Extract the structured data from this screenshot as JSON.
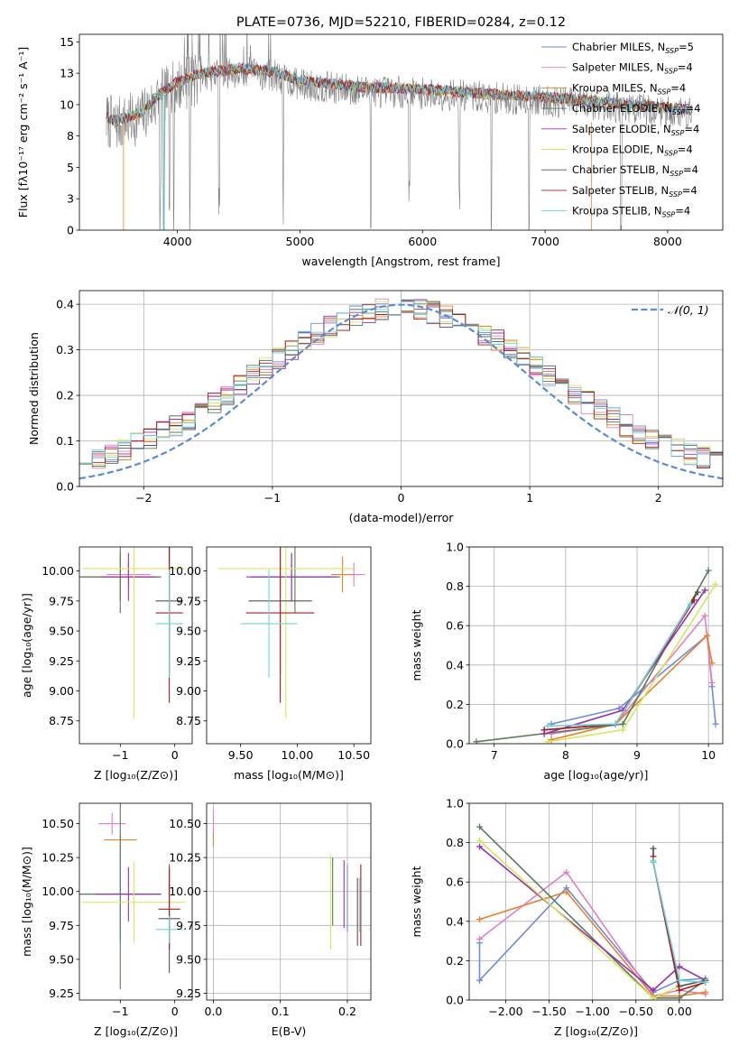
{
  "colors": {
    "Chabrier MILES": "#6c8ee0",
    "Salpeter MILES": "#e67fc0",
    "Kroupa MILES": "#e8822c",
    "Chabrier ELODIE": "#5a7a5a",
    "Salpeter ELODIE": "#9b30b0",
    "Kroupa ELODIE": "#d4e85a",
    "Chabrier STELIB": "#555555",
    "Salpeter STELIB": "#b01c1c",
    "Kroupa STELIB": "#6cd4d8",
    "normal": "#5a8ad8",
    "grid": "#b0b0b0"
  },
  "chart_data": [
    {
      "id": "spectrum",
      "type": "line",
      "title": "PLATE=0736, MJD=52210, FIBERID=0284, z=0.12",
      "xlabel": "wavelength [Angstrom, rest frame]",
      "ylabel": "Flux [fλ10⁻¹⁷ erg cm⁻² s⁻¹ A⁻¹]",
      "xlim": [
        3200,
        8450
      ],
      "ylim": [
        0,
        15.6
      ],
      "xticks": [
        4000,
        5000,
        6000,
        7000,
        8000
      ],
      "yticks": [
        0.0,
        2.5,
        5.0,
        7.5,
        10.0,
        12.5,
        15.0
      ],
      "grid": false,
      "legend_position": "top-right",
      "legend": [
        {
          "label": "Chabrier MILES, N",
          "sub": "SSP",
          "suffix": "=5"
        },
        {
          "label": "Salpeter MILES, N",
          "sub": "SSP",
          "suffix": "=4"
        },
        {
          "label": "Kroupa MILES, N",
          "sub": "SSP",
          "suffix": "=4"
        },
        {
          "label": "Chabrier ELODIE, N",
          "sub": "SSP",
          "suffix": "=4"
        },
        {
          "label": "Salpeter ELODIE, N",
          "sub": "SSP",
          "suffix": "=4"
        },
        {
          "label": "Kroupa ELODIE, N",
          "sub": "SSP",
          "suffix": "=4"
        },
        {
          "label": "Chabrier STELIB, N",
          "sub": "SSP",
          "suffix": "=4"
        },
        {
          "label": "Salpeter STELIB, N",
          "sub": "SSP",
          "suffix": "=4"
        },
        {
          "label": "Kroupa STELIB, N",
          "sub": "SSP",
          "suffix": "=4"
        }
      ],
      "continuum": [
        [
          3400,
          8.8
        ],
        [
          3500,
          8.4
        ],
        [
          3700,
          9.0
        ],
        [
          3850,
          10.5
        ],
        [
          4000,
          11.5
        ],
        [
          4200,
          12.2
        ],
        [
          4500,
          12.6
        ],
        [
          4800,
          12.3
        ],
        [
          5000,
          11.6
        ],
        [
          5200,
          11.4
        ],
        [
          5500,
          11.1
        ],
        [
          5800,
          11.0
        ],
        [
          6200,
          10.8
        ],
        [
          6600,
          10.5
        ],
        [
          7000,
          10.3
        ],
        [
          7400,
          10.0
        ],
        [
          7800,
          9.6
        ],
        [
          8200,
          9.3
        ]
      ],
      "deep_lines": [
        3860,
        3890,
        3935,
        3970,
        4102,
        4340,
        4861,
        5577,
        5892,
        6300,
        6563,
        6870,
        7620
      ]
    },
    {
      "id": "residuals",
      "type": "area",
      "xlabel": "(data-model)/error",
      "ylabel": "Normed distribution",
      "xlim": [
        -2.5,
        2.5
      ],
      "ylim": [
        0,
        0.43
      ],
      "xticks": [
        -2,
        -1,
        0,
        1,
        2
      ],
      "yticks": [
        0.0,
        0.1,
        0.2,
        0.3,
        0.4
      ],
      "grid": true,
      "legend_position": "top-right",
      "reference": {
        "label": "𝒩(0, 1)",
        "mean": 0,
        "sigma": 1
      },
      "bins": 50
    },
    {
      "id": "age_vs_Z",
      "type": "scatter",
      "xlabel": "Z [log₁₀(Z/Z⊙)]",
      "ylabel": "age  [log₁₀(age/yr)]",
      "xlim": [
        -1.75,
        0.32
      ],
      "ylim": [
        8.56,
        10.2
      ],
      "xticks": [
        -1,
        0
      ],
      "yticks": [
        8.75,
        9.0,
        9.25,
        9.5,
        9.75,
        10.0
      ],
      "grid": false,
      "points": [
        {
          "series": "Chabrier MILES",
          "x": -1.0,
          "xerr": 0.75,
          "y": 9.95,
          "yerr": 0.2
        },
        {
          "series": "Salpeter MILES",
          "x": -0.85,
          "xerr": 0.4,
          "y": 9.97,
          "yerr": 0.1
        },
        {
          "series": "Kroupa MILES",
          "x": -1.0,
          "xerr": 0.7,
          "y": 9.95,
          "yerr": 0.2
        },
        {
          "series": "Chabrier ELODIE",
          "x": -1.0,
          "xerr": 0.75,
          "y": 9.95,
          "yerr": 0.3
        },
        {
          "series": "Salpeter ELODIE",
          "x": -0.85,
          "xerr": 0.5,
          "y": 9.95,
          "yerr": 0.2
        },
        {
          "series": "Kroupa ELODIE",
          "x": -0.75,
          "xerr": 0.95,
          "y": 10.02,
          "yerr": 1.25
        },
        {
          "series": "Chabrier STELIB",
          "x": -0.1,
          "xerr": 0.25,
          "y": 9.75,
          "yerr": 0.6
        },
        {
          "series": "Salpeter STELIB",
          "x": -0.1,
          "xerr": 0.25,
          "y": 9.65,
          "yerr": 0.75
        },
        {
          "series": "Kroupa STELIB",
          "x": -0.1,
          "xerr": 0.25,
          "y": 9.56,
          "yerr": 0.45
        }
      ]
    },
    {
      "id": "age_vs_mass",
      "type": "scatter",
      "xlabel": "mass [log₁₀(M/M⊙)]",
      "xlim": [
        9.2,
        10.65
      ],
      "ylim": [
        8.56,
        10.2
      ],
      "xticks": [
        9.5,
        10.0,
        10.5
      ],
      "yticks": [
        8.75,
        9.0,
        9.25,
        9.5,
        9.75,
        10.0
      ],
      "grid": false,
      "points": [
        {
          "series": "Chabrier MILES",
          "x": 9.95,
          "xerr": 0.35,
          "y": 9.95,
          "yerr": 0.2
        },
        {
          "series": "Salpeter MILES",
          "x": 10.5,
          "xerr": 0.1,
          "y": 9.97,
          "yerr": 0.1
        },
        {
          "series": "Kroupa MILES",
          "x": 10.4,
          "xerr": 0.1,
          "y": 9.97,
          "yerr": 0.15
        },
        {
          "series": "Chabrier ELODIE",
          "x": 9.98,
          "xerr": 0.4,
          "y": 9.95,
          "yerr": 0.3
        },
        {
          "series": "Salpeter ELODIE",
          "x": 9.95,
          "xerr": 0.4,
          "y": 9.95,
          "yerr": 0.2
        },
        {
          "series": "Kroupa ELODIE",
          "x": 9.9,
          "xerr": 0.6,
          "y": 10.02,
          "yerr": 1.25
        },
        {
          "series": "Chabrier STELIB",
          "x": 9.85,
          "xerr": 0.28,
          "y": 9.75,
          "yerr": 0.6
        },
        {
          "series": "Salpeter STELIB",
          "x": 9.85,
          "xerr": 0.3,
          "y": 9.65,
          "yerr": 0.75
        },
        {
          "series": "Kroupa STELIB",
          "x": 9.75,
          "xerr": 0.25,
          "y": 9.56,
          "yerr": 0.45
        }
      ]
    },
    {
      "id": "weight_vs_age",
      "type": "line",
      "xlabel": "age  [log₁₀(age/yr)]",
      "ylabel": "mass weight",
      "xlim": [
        6.65,
        10.2
      ],
      "ylim": [
        0,
        1.0
      ],
      "xticks": [
        7,
        8,
        9,
        10
      ],
      "yticks": [
        0.0,
        0.2,
        0.4,
        0.6,
        0.8,
        1.0
      ],
      "grid": true,
      "series": [
        {
          "series": "Chabrier MILES",
          "x": [
            7.8,
            8.75,
            9.98,
            10.05,
            10.1
          ],
          "y": [
            0.1,
            0.18,
            0.55,
            0.29,
            0.1
          ]
        },
        {
          "series": "Salpeter MILES",
          "x": [
            7.8,
            8.7,
            9.95,
            10.05
          ],
          "y": [
            0.05,
            0.1,
            0.65,
            0.31
          ]
        },
        {
          "series": "Kroupa MILES",
          "x": [
            7.8,
            8.7,
            9.98,
            10.05
          ],
          "y": [
            0.02,
            0.1,
            0.55,
            0.41
          ]
        },
        {
          "series": "Chabrier ELODIE",
          "x": [
            6.75,
            8.8,
            10.0
          ],
          "y": [
            0.01,
            0.1,
            0.88
          ]
        },
        {
          "series": "Salpeter ELODIE",
          "x": [
            7.7,
            8.8,
            9.95
          ],
          "y": [
            0.05,
            0.17,
            0.78
          ]
        },
        {
          "series": "Kroupa ELODIE",
          "x": [
            7.75,
            8.8,
            10.1
          ],
          "y": [
            0.01,
            0.07,
            0.81
          ]
        },
        {
          "series": "Chabrier STELIB",
          "x": [
            7.7,
            8.7,
            9.85
          ],
          "y": [
            0.07,
            0.1,
            0.77
          ]
        },
        {
          "series": "Salpeter STELIB",
          "x": [
            7.7,
            8.7,
            9.8
          ],
          "y": [
            0.07,
            0.1,
            0.73
          ]
        },
        {
          "series": "Kroupa STELIB",
          "x": [
            7.75,
            8.7,
            9.75
          ],
          "y": [
            0.09,
            0.1,
            0.71
          ]
        }
      ]
    },
    {
      "id": "mass_vs_Z",
      "type": "scatter",
      "xlabel": "Z [log₁₀(Z/Z⊙)]",
      "ylabel": "mass [log₁₀(M/M⊙)]",
      "xlim": [
        -1.75,
        0.32
      ],
      "ylim": [
        9.2,
        10.65
      ],
      "xticks": [
        -1,
        0
      ],
      "yticks": [
        9.25,
        9.5,
        9.75,
        10.0,
        10.25,
        10.5
      ],
      "grid": false,
      "points": [
        {
          "series": "Chabrier MILES",
          "x": -1.0,
          "xerr": 0.75,
          "y": 9.98,
          "yerr": 0.35
        },
        {
          "series": "Salpeter MILES",
          "x": -1.15,
          "xerr": 0.25,
          "y": 10.5,
          "yerr": 0.08
        },
        {
          "series": "Kroupa MILES",
          "x": -1.0,
          "xerr": 0.3,
          "y": 10.38,
          "yerr": 0.05
        },
        {
          "series": "Chabrier ELODIE",
          "x": -1.0,
          "xerr": 0.75,
          "y": 9.98,
          "yerr": 0.7
        },
        {
          "series": "Salpeter ELODIE",
          "x": -0.85,
          "xerr": 0.6,
          "y": 9.98,
          "yerr": 0.2
        },
        {
          "series": "Kroupa ELODIE",
          "x": -0.75,
          "xerr": 0.95,
          "y": 9.92,
          "yerr": 0.3
        },
        {
          "series": "Chabrier STELIB",
          "x": -0.1,
          "xerr": 0.2,
          "y": 9.8,
          "yerr": 0.4
        },
        {
          "series": "Salpeter STELIB",
          "x": -0.1,
          "xerr": 0.2,
          "y": 9.87,
          "yerr": 0.3
        },
        {
          "series": "Kroupa STELIB",
          "x": -0.1,
          "xerr": 0.25,
          "y": 9.72,
          "yerr": 0.1
        }
      ]
    },
    {
      "id": "mass_vs_ebv",
      "type": "scatter",
      "xlabel": "E(B-V)",
      "xlim": [
        -0.01,
        0.235
      ],
      "ylim": [
        9.2,
        10.65
      ],
      "xticks": [
        0.0,
        0.1,
        0.2
      ],
      "yticks": [
        9.25,
        9.5,
        9.75,
        10.0,
        10.25,
        10.5
      ],
      "grid": true,
      "points": [
        {
          "series": "Salpeter MILES",
          "x": 0.0,
          "xerr": 0,
          "y": 10.5,
          "yerr": 0.1
        },
        {
          "series": "Kroupa MILES",
          "x": 0.0,
          "xerr": 0,
          "y": 10.38,
          "yerr": 0.05
        },
        {
          "series": "Kroupa ELODIE",
          "x": 0.175,
          "xerr": 0,
          "y": 9.92,
          "yerr": 0.35
        },
        {
          "series": "Chabrier ELODIE",
          "x": 0.178,
          "xerr": 0,
          "y": 10.0,
          "yerr": 0.25
        },
        {
          "series": "Salpeter ELODIE",
          "x": 0.195,
          "xerr": 0,
          "y": 9.98,
          "yerr": 0.25
        },
        {
          "series": "Chabrier MILES",
          "x": 0.2,
          "xerr": 0,
          "y": 9.95,
          "yerr": 0.25
        },
        {
          "series": "Chabrier STELIB",
          "x": 0.215,
          "xerr": 0,
          "y": 9.85,
          "yerr": 0.25
        },
        {
          "series": "Kroupa STELIB",
          "x": 0.218,
          "xerr": 0,
          "y": 9.9,
          "yerr": 0.2
        },
        {
          "series": "Salpeter STELIB",
          "x": 0.22,
          "xerr": 0,
          "y": 9.9,
          "yerr": 0.3
        }
      ]
    },
    {
      "id": "weight_vs_Z",
      "type": "line",
      "xlabel": "Z [log₁₀(Z/Z⊙)]",
      "ylabel": "mass weight",
      "xlim": [
        -2.42,
        0.5
      ],
      "ylim": [
        0,
        1.0
      ],
      "xticks": [
        -2.0,
        -1.5,
        -1.0,
        -0.5,
        0.0
      ],
      "yticks": [
        0.0,
        0.2,
        0.4,
        0.6,
        0.8,
        1.0
      ],
      "grid": true,
      "series": [
        {
          "series": "Chabrier MILES",
          "x": [
            -2.3,
            -2.3,
            -1.3,
            -0.3,
            0.0,
            0.3
          ],
          "y": [
            0.29,
            0.1,
            0.57,
            0.04,
            0.1,
            0.11
          ]
        },
        {
          "series": "Salpeter MILES",
          "x": [
            -2.3,
            -1.3,
            -0.3,
            0.0,
            0.3
          ],
          "y": [
            0.31,
            0.65,
            0.02,
            0.05,
            0.03
          ]
        },
        {
          "series": "Kroupa MILES",
          "x": [
            -2.3,
            -1.3,
            -0.3,
            0.0,
            0.3
          ],
          "y": [
            0.41,
            0.55,
            0.02,
            0.02,
            0.04
          ]
        },
        {
          "series": "Chabrier ELODIE",
          "x": [
            -2.3,
            -0.3,
            0.0,
            0.3
          ],
          "y": [
            0.88,
            0.01,
            0.01,
            0.1
          ]
        },
        {
          "series": "Salpeter ELODIE",
          "x": [
            -2.3,
            -0.3,
            0.0,
            0.3
          ],
          "y": [
            0.78,
            0.05,
            0.17,
            0.1
          ]
        },
        {
          "series": "Kroupa ELODIE",
          "x": [
            -2.3,
            -0.3,
            0.0,
            0.3
          ],
          "y": [
            0.81,
            0.01,
            0.07,
            0.1
          ]
        },
        {
          "series": "Chabrier STELIB",
          "x": [
            -0.3,
            -0.3,
            0.0,
            0.3
          ],
          "y": [
            0.77,
            0.7,
            0.07,
            0.1
          ]
        },
        {
          "series": "Salpeter STELIB",
          "x": [
            -0.3,
            -0.3,
            0.0,
            0.3
          ],
          "y": [
            0.73,
            0.7,
            0.05,
            0.09
          ]
        },
        {
          "series": "Kroupa STELIB",
          "x": [
            -0.3,
            -0.3,
            0.0,
            0.3
          ],
          "y": [
            0.71,
            0.7,
            0.1,
            0.09
          ]
        }
      ]
    }
  ]
}
